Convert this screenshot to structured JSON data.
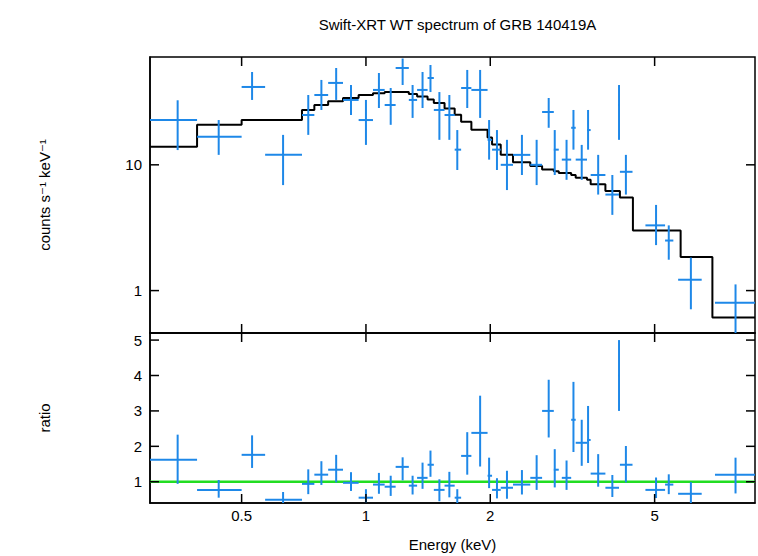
{
  "chart_data": [
    {
      "type": "scatter",
      "title": "Swift-XRT WT spectrum of GRB 140419A",
      "ylabel": "counts s⁻¹ keV⁻¹",
      "log": true,
      "xlim": [
        0.3,
        8.75
      ],
      "xticks": [
        0.5,
        1,
        2,
        5
      ],
      "ylim": [
        0.46,
        72
      ],
      "yticks": [
        1,
        10
      ],
      "tick_labels": "y",
      "series": [
        {
          "type": "line",
          "line_style": "steps",
          "color": "#000000",
          "bins": [
            0.3,
            0.39,
            0.5,
            0.7,
            0.75,
            0.81,
            0.88,
            0.96,
            1.04,
            1.11,
            1.18,
            1.27,
            1.33,
            1.41,
            1.46,
            1.55,
            1.64,
            1.7,
            1.8,
            1.97,
            2.02,
            2.12,
            2.27,
            2.5,
            2.67,
            2.85,
            2.93,
            3.14,
            3.22,
            3.43,
            3.5,
            3.8,
            4.12,
            4.43,
            5.78,
            6.9,
            8.75
          ],
          "values": [
            13.9,
            20.8,
            22.7,
            27.3,
            29.9,
            32,
            34,
            35.9,
            37,
            37.9,
            37.9,
            36.5,
            35,
            33,
            31,
            28,
            25,
            22,
            19,
            16.5,
            14.5,
            12.0,
            10.5,
            9.8,
            9.2,
            8.9,
            8.6,
            8.3,
            7.9,
            7.6,
            7.0,
            6.2,
            5.5,
            3.0,
            1.85,
            0.61
          ]
        },
        {
          "type": "scatter",
          "color": "#1e88e8",
          "x": [
            0.35,
            0.44,
            0.53,
            0.63,
            0.725,
            0.78,
            0.847,
            0.92,
            1.0,
            1.075,
            1.148,
            1.227,
            1.297,
            1.371,
            1.433,
            1.506,
            1.592,
            1.664,
            1.759,
            1.89,
            1.987,
            2.076,
            2.195,
            2.386,
            2.59,
            2.77,
            2.865,
            3.06,
            3.18,
            3.33,
            3.45,
            3.65,
            3.95,
            4.1,
            4.26,
            5.04,
            5.41,
            6.12,
            7.85
          ],
          "x_low": [
            0.3,
            0.39,
            0.5,
            0.57,
            0.7,
            0.75,
            0.81,
            0.88,
            0.96,
            1.04,
            1.11,
            1.18,
            1.27,
            1.33,
            1.41,
            1.46,
            1.55,
            1.64,
            1.7,
            1.8,
            1.97,
            2.02,
            2.12,
            2.27,
            2.5,
            2.67,
            2.85,
            2.98,
            3.14,
            3.22,
            3.43,
            3.5,
            3.8,
            4.08,
            4.12,
            4.75,
            5.3,
            5.7,
            7.0
          ],
          "x_high": [
            0.39,
            0.5,
            0.57,
            0.7,
            0.75,
            0.81,
            0.88,
            0.96,
            1.04,
            1.11,
            1.18,
            1.27,
            1.33,
            1.41,
            1.46,
            1.55,
            1.64,
            1.7,
            1.8,
            1.97,
            2.02,
            2.12,
            2.27,
            2.5,
            2.67,
            2.85,
            2.93,
            3.14,
            3.22,
            3.43,
            3.5,
            3.8,
            4.1,
            4.12,
            4.42,
            5.3,
            5.55,
            6.5,
            8.75
          ],
          "values": [
            22.7,
            16.7,
            41.6,
            12.0,
            24.9,
            35.9,
            44.8,
            32.8,
            22.7,
            39.4,
            29.9,
            58.9,
            32.8,
            39.4,
            49.0,
            27.3,
            24.9,
            13.2,
            40.8,
            39.4,
            15.8,
            13.2,
            10.0,
            12.0,
            10.0,
            26.3,
            13.2,
            11.0,
            19.7,
            11.0,
            18.9,
            8.3,
            5.8,
            29.9,
            8.8,
            3.3,
            2.5,
            1.22,
            0.8
          ],
          "y_low": [
            13.1,
            12.0,
            32.8,
            6.9,
            17.3,
            27.3,
            32.8,
            24.9,
            14.4,
            28.3,
            20.8,
            43.1,
            23.6,
            28.3,
            37.9,
            15.8,
            15.8,
            9.1,
            28.3,
            23.6,
            11.0,
            9.1,
            6.3,
            8.3,
            6.9,
            19.7,
            8.3,
            7.6,
            13.2,
            7.6,
            13.2,
            5.8,
            4.0,
            15.8,
            5.8,
            2.3,
            1.76,
            0.71,
            0.45
          ],
          "y_high": [
            32.6,
            22.7,
            54.7,
            17.3,
            35.9,
            47.3,
            58.9,
            43.1,
            32.8,
            53.7,
            40.8,
            70,
            43.1,
            54.7,
            62.2,
            37.9,
            35.9,
            18.9,
            56.8,
            56.8,
            22.7,
            18.9,
            15.8,
            17.3,
            15.8,
            34.0,
            18.9,
            15.8,
            27.3,
            14.4,
            27.3,
            12.0,
            8.3,
            43.1,
            12.0,
            4.8,
            3.3,
            1.83,
            1.12
          ]
        }
      ]
    },
    {
      "type": "scatter",
      "xlabel": "Energy (keV)",
      "ylabel": "ratio",
      "log": "x",
      "xlim": [
        0.3,
        8.75
      ],
      "xticks": [
        0.5,
        1,
        2,
        5
      ],
      "ylim": [
        0.4,
        5.2
      ],
      "yticks": [
        1,
        2,
        3,
        4,
        5
      ],
      "series": [
        {
          "type": "line",
          "color": "#22dd22",
          "x": [
            0.3,
            8.75
          ],
          "values": [
            1,
            1
          ]
        },
        {
          "type": "scatter",
          "color": "#1e88e8",
          "x": [
            0.35,
            0.44,
            0.53,
            0.63,
            0.725,
            0.78,
            0.847,
            0.92,
            1.0,
            1.075,
            1.148,
            1.227,
            1.297,
            1.371,
            1.433,
            1.506,
            1.592,
            1.664,
            1.759,
            1.89,
            1.987,
            2.076,
            2.195,
            2.386,
            2.59,
            2.77,
            2.865,
            3.06,
            3.18,
            3.33,
            3.45,
            3.65,
            3.95,
            4.1,
            4.26,
            5.04,
            5.41,
            6.12,
            7.85
          ],
          "x_low": [
            0.3,
            0.39,
            0.5,
            0.57,
            0.7,
            0.75,
            0.81,
            0.88,
            0.96,
            1.04,
            1.11,
            1.18,
            1.27,
            1.33,
            1.41,
            1.46,
            1.55,
            1.64,
            1.7,
            1.8,
            1.97,
            2.02,
            2.12,
            2.27,
            2.5,
            2.67,
            2.85,
            2.98,
            3.14,
            3.22,
            3.43,
            3.5,
            3.8,
            4.08,
            4.12,
            4.75,
            5.3,
            5.7,
            7.0
          ],
          "x_high": [
            0.39,
            0.5,
            0.57,
            0.7,
            0.75,
            0.81,
            0.88,
            0.96,
            1.04,
            1.11,
            1.18,
            1.27,
            1.33,
            1.41,
            1.46,
            1.55,
            1.64,
            1.7,
            1.8,
            1.97,
            2.02,
            2.12,
            2.27,
            2.5,
            2.67,
            2.85,
            2.93,
            3.14,
            3.22,
            3.43,
            3.5,
            3.8,
            4.1,
            4.12,
            4.42,
            5.3,
            5.55,
            6.5,
            8.75
          ],
          "values": [
            1.62,
            0.77,
            1.76,
            0.49,
            0.94,
            1.2,
            1.34,
            0.97,
            0.55,
            0.92,
            0.86,
            1.42,
            0.89,
            1.11,
            1.48,
            0.77,
            0.89,
            0.55,
            1.73,
            2.38,
            1.17,
            0.77,
            0.83,
            0.92,
            1.11,
            3.0,
            1.34,
            1.11,
            2.75,
            2.1,
            2.18,
            1.23,
            0.83,
            4.0,
            1.48,
            0.77,
            0.92,
            0.66,
            1.2
          ],
          "y_low": [
            0.94,
            0.55,
            1.39,
            0.28,
            0.65,
            0.91,
            0.98,
            0.74,
            0.35,
            0.66,
            0.6,
            1.04,
            0.64,
            0.8,
            1.14,
            0.45,
            0.56,
            0.38,
            1.2,
            1.43,
            0.82,
            0.53,
            0.52,
            0.64,
            0.77,
            2.25,
            0.84,
            0.77,
            1.84,
            1.45,
            1.53,
            0.86,
            0.57,
            3.0,
            0.98,
            0.54,
            0.65,
            0.38,
            0.67
          ],
          "y_high": [
            2.33,
            1.05,
            2.31,
            0.71,
            1.35,
            1.58,
            1.76,
            1.27,
            0.79,
            1.25,
            1.17,
            1.69,
            1.17,
            1.54,
            1.88,
            1.07,
            1.28,
            0.79,
            2.4,
            3.43,
            1.68,
            1.1,
            1.31,
            1.33,
            1.75,
            3.88,
            1.92,
            1.6,
            3.82,
            2.75,
            3.14,
            1.78,
            1.19,
            5.0,
            2.01,
            1.12,
            1.21,
            0.99,
            1.68
          ]
        }
      ]
    }
  ]
}
